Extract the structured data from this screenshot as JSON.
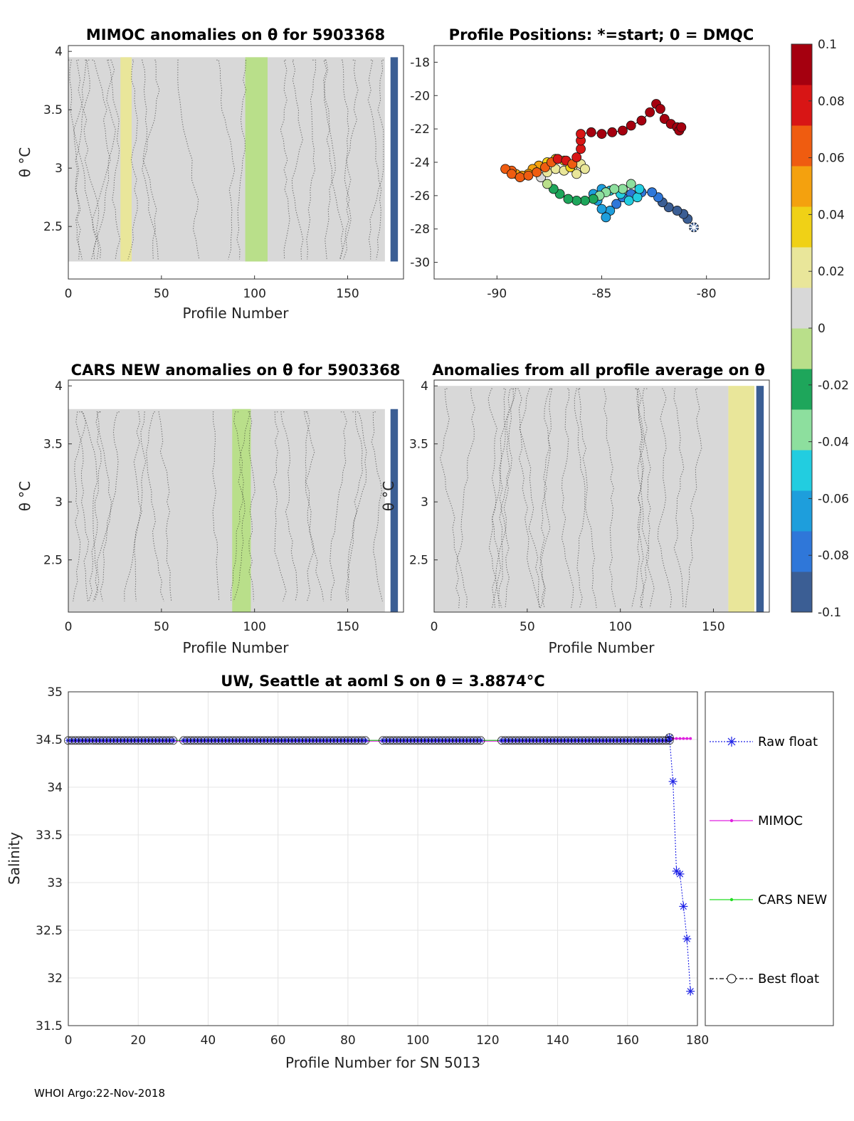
{
  "footer": "WHOI Argo:22-Nov-2018",
  "colormap": [
    "#3b5e94",
    "#2f77d9",
    "#1e9edc",
    "#22cde0",
    "#8ddf9e",
    "#1ea65b",
    "#b9df8a",
    "#d8d8d8",
    "#e9e69a",
    "#f0d116",
    "#f4a10e",
    "#ef5c10",
    "#d81515",
    "#a5000f"
  ],
  "colorbar": {
    "ticks": [
      "0.1",
      "0.08",
      "0.06",
      "0.04",
      "0.02",
      "0",
      "-0.02",
      "-0.04",
      "-0.06",
      "-0.08",
      "-0.1"
    ],
    "range": [
      -0.1,
      0.1
    ]
  },
  "chart_data": [
    {
      "type": "heatmap",
      "title": "MIMOC anomalies on θ  for 5903368",
      "xlabel": "Profile Number",
      "ylabel": "θ °C",
      "xlim": [
        0,
        180
      ],
      "ylim": [
        2.05,
        4.05
      ],
      "xticks": [
        "0",
        "50",
        "100",
        "150"
      ],
      "yticks": [
        "2.5",
        "3",
        "3.5",
        "4"
      ],
      "y_range": [
        2.2,
        3.95
      ],
      "anomaly_bands": [
        {
          "x_start": 0,
          "x_end": 170,
          "value": 0.0
        },
        {
          "x_start": 28,
          "x_end": 34,
          "value": 0.02
        },
        {
          "x_start": 95,
          "x_end": 107,
          "value": -0.01
        },
        {
          "x_start": 173,
          "x_end": 177,
          "value": -0.1
        }
      ]
    },
    {
      "type": "scatter",
      "title": "Profile Positions: *=start; 0 = DMQC",
      "xlim": [
        -93,
        -77
      ],
      "ylim": [
        -31,
        -17
      ],
      "xticks": [
        "-90",
        "-85",
        "-80"
      ],
      "yticks": [
        "-18",
        "-20",
        "-22",
        "-24",
        "-26",
        "-28",
        "-30"
      ],
      "points": [
        [
          -80.6,
          -27.9,
          -0.1
        ],
        [
          -80.9,
          -27.4,
          -0.1
        ],
        [
          -81.1,
          -27.1,
          -0.095
        ],
        [
          -81.4,
          -26.9,
          -0.09
        ],
        [
          -81.8,
          -26.7,
          -0.09
        ],
        [
          -82.1,
          -26.4,
          -0.09
        ],
        [
          -82.3,
          -26.1,
          -0.085
        ],
        [
          -82.6,
          -25.8,
          -0.085
        ],
        [
          -83.1,
          -25.8,
          -0.08
        ],
        [
          -83.6,
          -25.9,
          -0.08
        ],
        [
          -84.0,
          -26.1,
          -0.075
        ],
        [
          -84.3,
          -26.5,
          -0.075
        ],
        [
          -84.6,
          -26.9,
          -0.07
        ],
        [
          -84.8,
          -27.3,
          -0.07
        ],
        [
          -85.0,
          -26.8,
          -0.07
        ],
        [
          -85.2,
          -26.3,
          -0.07
        ],
        [
          -85.4,
          -25.9,
          -0.065
        ],
        [
          -85.0,
          -25.6,
          -0.06
        ],
        [
          -84.6,
          -25.7,
          -0.055
        ],
        [
          -84.1,
          -25.9,
          -0.05
        ],
        [
          -83.7,
          -26.3,
          -0.05
        ],
        [
          -83.3,
          -26.1,
          -0.045
        ],
        [
          -83.2,
          -25.6,
          -0.045
        ],
        [
          -83.6,
          -25.3,
          -0.04
        ],
        [
          -84.0,
          -25.6,
          -0.04
        ],
        [
          -84.4,
          -25.6,
          -0.035
        ],
        [
          -84.8,
          -25.8,
          -0.035
        ],
        [
          -85.1,
          -26.0,
          -0.03
        ],
        [
          -85.4,
          -26.2,
          -0.025
        ],
        [
          -85.8,
          -26.3,
          -0.025
        ],
        [
          -86.2,
          -26.3,
          -0.02
        ],
        [
          -86.6,
          -26.2,
          -0.02
        ],
        [
          -87.0,
          -25.9,
          -0.015
        ],
        [
          -87.3,
          -25.6,
          -0.015
        ],
        [
          -87.6,
          -25.3,
          -0.01
        ],
        [
          -87.9,
          -24.9,
          0.005
        ],
        [
          -87.6,
          -24.6,
          0.015
        ],
        [
          -87.2,
          -24.4,
          0.02
        ],
        [
          -86.8,
          -24.5,
          0.02
        ],
        [
          -86.4,
          -24.3,
          0.025
        ],
        [
          -86.0,
          -24.1,
          0.025
        ],
        [
          -85.8,
          -24.4,
          0.025
        ],
        [
          -86.2,
          -24.7,
          0.02
        ],
        [
          -86.5,
          -24.3,
          0.03
        ],
        [
          -86.8,
          -23.9,
          0.03
        ],
        [
          -87.2,
          -23.8,
          0.035
        ],
        [
          -87.6,
          -24.0,
          0.04
        ],
        [
          -88.0,
          -24.2,
          0.045
        ],
        [
          -88.3,
          -24.4,
          0.05
        ],
        [
          -88.5,
          -24.7,
          0.05
        ],
        [
          -88.8,
          -24.8,
          0.055
        ],
        [
          -89.1,
          -24.7,
          0.055
        ],
        [
          -89.3,
          -24.5,
          0.06
        ],
        [
          -89.6,
          -24.4,
          0.06
        ],
        [
          -89.3,
          -24.7,
          0.06
        ],
        [
          -88.9,
          -24.9,
          0.06
        ],
        [
          -88.5,
          -24.8,
          0.06
        ],
        [
          -88.1,
          -24.6,
          0.065
        ],
        [
          -87.7,
          -24.3,
          0.07
        ],
        [
          -87.4,
          -24.0,
          0.07
        ],
        [
          -87.1,
          -23.8,
          0.075
        ],
        [
          -86.7,
          -23.9,
          0.075
        ],
        [
          -86.4,
          -24.1,
          0.07
        ],
        [
          -86.2,
          -23.7,
          0.075
        ],
        [
          -86.0,
          -23.2,
          0.08
        ],
        [
          -86.0,
          -22.7,
          0.085
        ],
        [
          -86.0,
          -22.3,
          0.085
        ],
        [
          -85.5,
          -22.2,
          0.09
        ],
        [
          -85.0,
          -22.3,
          0.09
        ],
        [
          -84.5,
          -22.2,
          0.09
        ],
        [
          -84.0,
          -22.1,
          0.09
        ],
        [
          -83.6,
          -21.8,
          0.09
        ],
        [
          -83.1,
          -21.5,
          0.09
        ],
        [
          -82.7,
          -21.0,
          0.09
        ],
        [
          -82.4,
          -20.5,
          0.09
        ],
        [
          -82.2,
          -20.8,
          0.09
        ],
        [
          -82.0,
          -21.4,
          0.09
        ],
        [
          -81.7,
          -21.7,
          0.095
        ],
        [
          -81.4,
          -21.9,
          0.1
        ],
        [
          -81.3,
          -22.1,
          0.1
        ],
        [
          -81.2,
          -21.9,
          0.1
        ]
      ]
    },
    {
      "type": "heatmap",
      "title": "CARS NEW anomalies on θ for 5903368",
      "xlabel": "Profile Number",
      "ylabel": "θ °C",
      "xlim": [
        0,
        180
      ],
      "ylim": [
        2.05,
        4.05
      ],
      "xticks": [
        "0",
        "50",
        "100",
        "150"
      ],
      "yticks": [
        "2.5",
        "3",
        "3.5",
        "4"
      ],
      "y_range": [
        2.05,
        3.8
      ],
      "anomaly_bands": [
        {
          "x_start": 0,
          "x_end": 170,
          "value": 0.0
        },
        {
          "x_start": 88,
          "x_end": 98,
          "value": -0.01
        },
        {
          "x_start": 173,
          "x_end": 177,
          "value": -0.1
        }
      ]
    },
    {
      "type": "heatmap",
      "title": "Anomalies from all profile average on θ",
      "xlabel": "Profile Number",
      "ylabel": "θ °C",
      "xlim": [
        0,
        180
      ],
      "ylim": [
        2.05,
        4.05
      ],
      "xticks": [
        "0",
        "50",
        "100",
        "150"
      ],
      "yticks": [
        "2.5",
        "3",
        "3.5",
        "4"
      ],
      "y_range": [
        2.05,
        4.0
      ],
      "anomaly_bands": [
        {
          "x_start": 0,
          "x_end": 158,
          "value": 0.0
        },
        {
          "x_start": 158,
          "x_end": 172,
          "value": 0.015
        },
        {
          "x_start": 173,
          "x_end": 177,
          "value": -0.1
        }
      ]
    },
    {
      "type": "line",
      "title": "UW, Seattle at aoml S on θ = 3.8874°C",
      "xlabel": "Profile Number for SN 5013",
      "ylabel": "Salinity",
      "xlim": [
        0,
        180
      ],
      "ylim": [
        31.5,
        35
      ],
      "xticks": [
        "0",
        "20",
        "40",
        "60",
        "80",
        "100",
        "120",
        "140",
        "160",
        "180"
      ],
      "yticks": [
        "31.5",
        "32",
        "32.5",
        "33",
        "33.5",
        "34",
        "34.5",
        "35"
      ],
      "legend": "right",
      "baseline": {
        "value": 34.49,
        "x_from": 0,
        "x_to": 172,
        "gaps": [
          [
            30,
            33
          ],
          [
            85,
            90
          ],
          [
            118,
            124
          ]
        ]
      },
      "series": [
        {
          "name": "Raw float",
          "color": "#1e22e6",
          "marker": "*",
          "tail": [
            [
              172,
              34.52
            ],
            [
              173,
              34.06
            ],
            [
              174,
              33.12
            ],
            [
              175,
              33.09
            ],
            [
              176,
              32.75
            ],
            [
              177,
              32.41
            ],
            [
              178,
              31.86
            ]
          ]
        },
        {
          "name": "MIMOC",
          "color": "#e020e0",
          "marker": "dot",
          "tail": [
            [
              172,
              34.51
            ],
            [
              173,
              34.51
            ],
            [
              174,
              34.51
            ],
            [
              175,
              34.51
            ],
            [
              176,
              34.51
            ],
            [
              177,
              34.51
            ],
            [
              178,
              34.51
            ]
          ]
        },
        {
          "name": "CARS NEW",
          "color": "#22dd22",
          "marker": "dot",
          "tail": []
        },
        {
          "name": "Best float",
          "color": "#000000",
          "marker": "o",
          "tail": []
        }
      ]
    }
  ]
}
